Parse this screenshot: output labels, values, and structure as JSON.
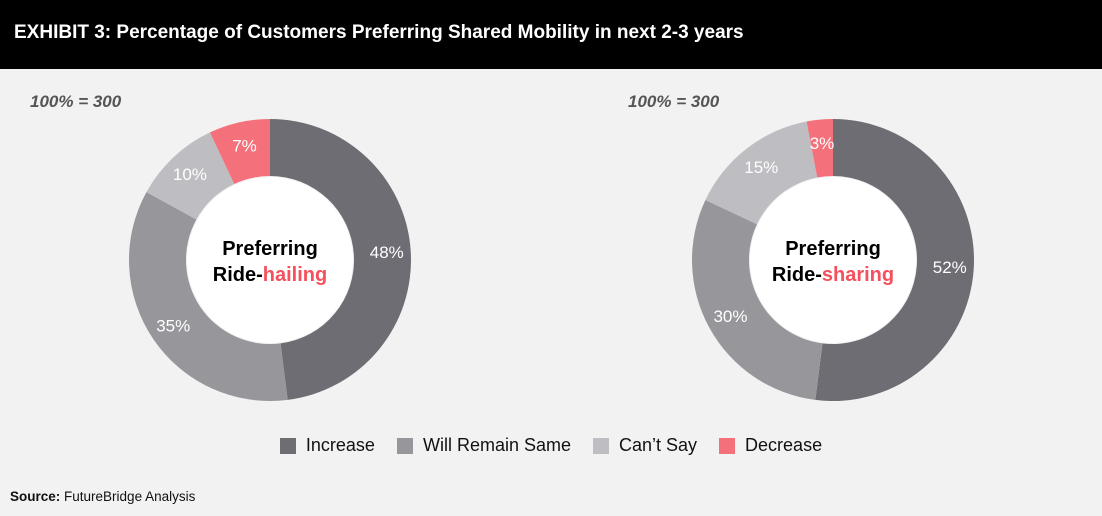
{
  "header": {
    "title": "EXHIBIT 3: Percentage of Customers Preferring Shared Mobility in next 2-3 years"
  },
  "colors": {
    "increase": "#6e6d74",
    "same": "#97969b",
    "cant_say": "#bebdc2",
    "decrease": "#f4707a",
    "highlight": "#f4505e"
  },
  "chart_data": [
    {
      "type": "pie",
      "base_label": "100% = 300",
      "center_label_line1": "Preferring",
      "center_label_prefix": "Ride-",
      "center_label_highlight": "hailing",
      "slices": [
        {
          "label": "Increase",
          "value": 48,
          "text": "48%"
        },
        {
          "label": "Will Remain Same",
          "value": 35,
          "text": "35%"
        },
        {
          "label": "Can’t Say",
          "value": 10,
          "text": "10%"
        },
        {
          "label": "Decrease",
          "value": 7,
          "text": "7%"
        }
      ]
    },
    {
      "type": "pie",
      "base_label": "100% = 300",
      "center_label_line1": "Preferring",
      "center_label_prefix": "Ride-",
      "center_label_highlight": "sharing",
      "slices": [
        {
          "label": "Increase",
          "value": 52,
          "text": "52%"
        },
        {
          "label": "Will Remain Same",
          "value": 30,
          "text": "30%"
        },
        {
          "label": "Can’t Say",
          "value": 15,
          "text": "15%"
        },
        {
          "label": "Decrease",
          "value": 3,
          "text": "3%"
        }
      ]
    }
  ],
  "legend": [
    {
      "label": "Increase",
      "color_key": "increase"
    },
    {
      "label": "Will Remain Same",
      "color_key": "same"
    },
    {
      "label": "Can’t Say",
      "color_key": "cant_say"
    },
    {
      "label": "Decrease",
      "color_key": "decrease"
    }
  ],
  "source": {
    "label": "Source:",
    "text": "FutureBridge Analysis"
  }
}
